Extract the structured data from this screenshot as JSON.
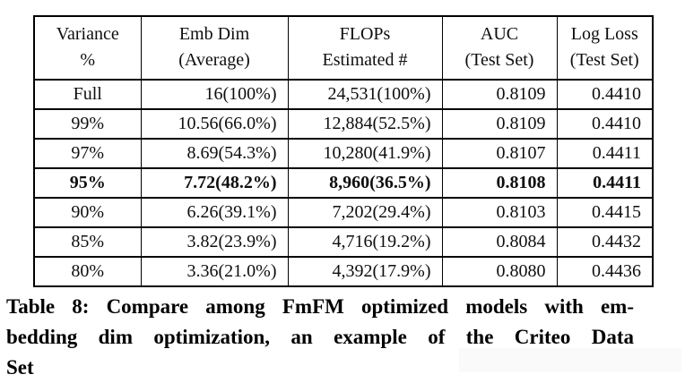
{
  "colors": {
    "background": "#ffffff",
    "border": "#000000",
    "text": "#0e0e0e"
  },
  "table": {
    "header": [
      {
        "line1": "Variance",
        "line2": "%"
      },
      {
        "line1": "Emb Dim",
        "line2": "(Average)"
      },
      {
        "line1": "FLOPs",
        "line2": "Estimated #"
      },
      {
        "line1": "AUC",
        "line2": "(Test Set)"
      },
      {
        "line1": "Log Loss",
        "line2": "(Test Set)"
      }
    ],
    "rows": [
      {
        "variance": "Full",
        "emb_dim": "16(100%)",
        "flops": "24,531(100%)",
        "auc": "0.8109",
        "log_loss": "0.4410",
        "bold": false
      },
      {
        "variance": "99%",
        "emb_dim": "10.56(66.0%)",
        "flops": "12,884(52.5%)",
        "auc": "0.8109",
        "log_loss": "0.4410",
        "bold": false
      },
      {
        "variance": "97%",
        "emb_dim": "8.69(54.3%)",
        "flops": "10,280(41.9%)",
        "auc": "0.8107",
        "log_loss": "0.4411",
        "bold": false
      },
      {
        "variance": "95%",
        "emb_dim": "7.72(48.2%)",
        "flops": "8,960(36.5%)",
        "auc": "0.8108",
        "log_loss": "0.4411",
        "bold": true
      },
      {
        "variance": "90%",
        "emb_dim": "6.26(39.1%)",
        "flops": "7,202(29.4%)",
        "auc": "0.8103",
        "log_loss": "0.4415",
        "bold": false
      },
      {
        "variance": "85%",
        "emb_dim": "3.82(23.9%)",
        "flops": "4,716(19.2%)",
        "auc": "0.8084",
        "log_loss": "0.4432",
        "bold": false
      },
      {
        "variance": "80%",
        "emb_dim": "3.36(21.0%)",
        "flops": "4,392(17.9%)",
        "auc": "0.8080",
        "log_loss": "0.4436",
        "bold": false
      }
    ]
  },
  "caption": {
    "lines": [
      "Table 8: Compare among FmFM optimized models with em-",
      "bedding dim optimization, an example of the Criteo Data",
      "Set"
    ]
  }
}
